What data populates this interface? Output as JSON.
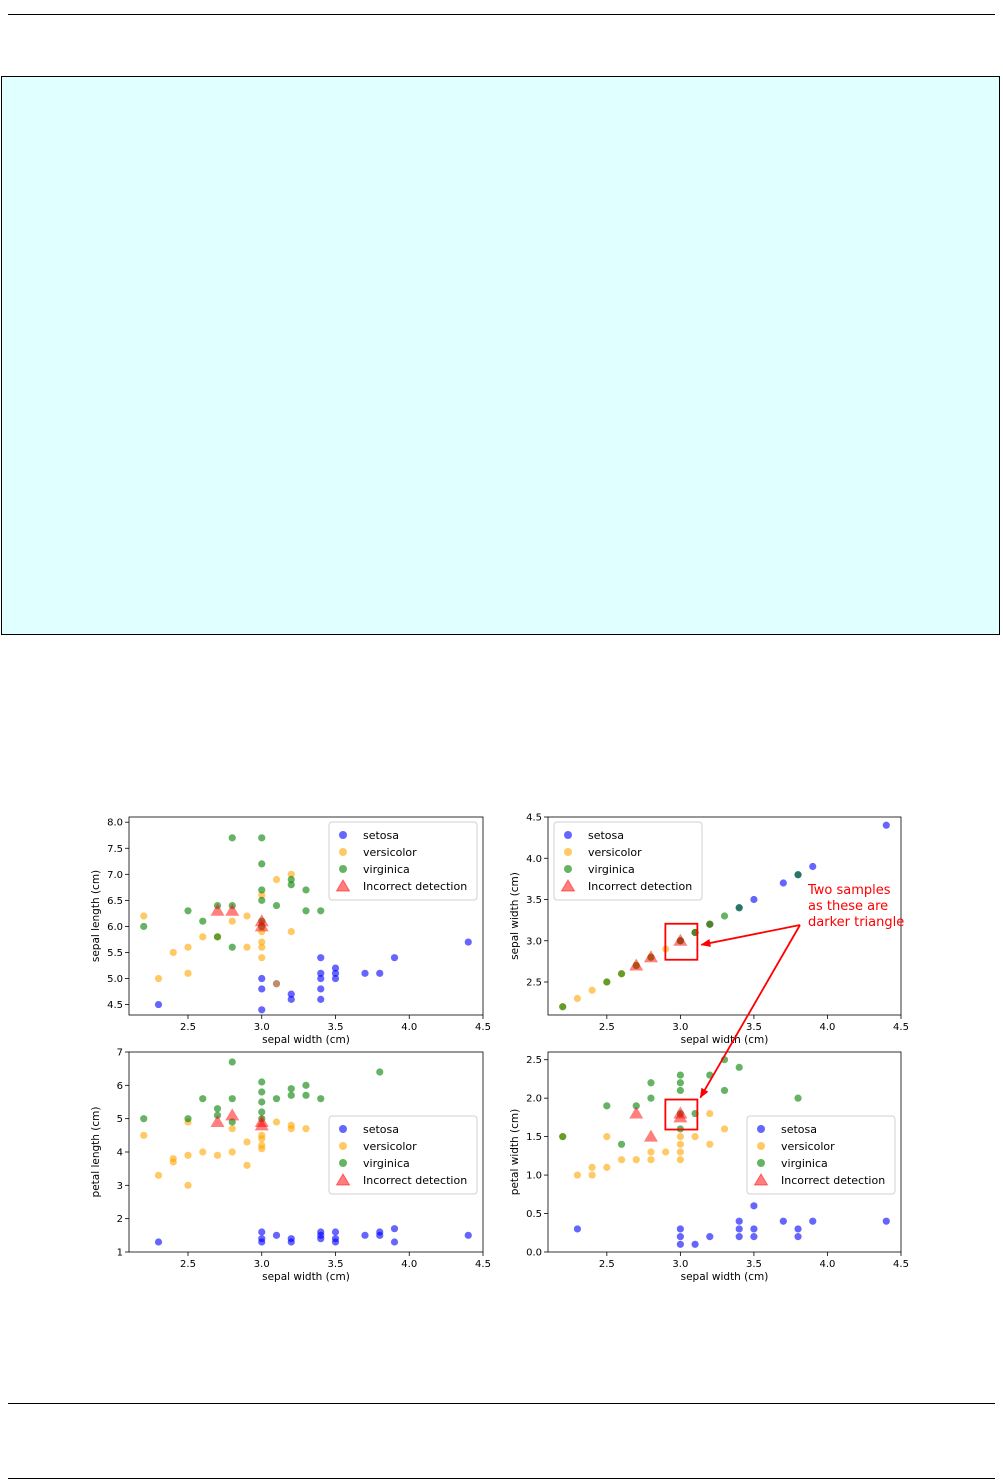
{
  "chart_data": [
    {
      "type": "scatter",
      "xlabel": "sepal width (cm)",
      "ylabel": "sepal length (cm)",
      "xlim": [
        2.1,
        4.5
      ],
      "ylim": [
        4.3,
        8.1
      ],
      "xticks": [
        2.5,
        3.0,
        3.5,
        4.0,
        4.5
      ],
      "yticks": [
        4.5,
        5.0,
        5.5,
        6.0,
        6.5,
        7.0,
        7.5,
        8.0
      ],
      "legend_position": "top-right",
      "series": [
        {
          "name": "setosa",
          "color": "#0000ff",
          "points": [
            [
              2.3,
              4.5
            ],
            [
              3.0,
              4.4
            ],
            [
              3.0,
              4.8
            ],
            [
              3.0,
              5.0
            ],
            [
              3.1,
              4.9
            ],
            [
              3.2,
              4.6
            ],
            [
              3.2,
              4.7
            ],
            [
              3.4,
              4.6
            ],
            [
              3.4,
              4.8
            ],
            [
              3.4,
              5.0
            ],
            [
              3.4,
              5.1
            ],
            [
              3.4,
              5.4
            ],
            [
              3.5,
              5.0
            ],
            [
              3.5,
              5.1
            ],
            [
              3.5,
              5.2
            ],
            [
              3.7,
              5.1
            ],
            [
              3.8,
              5.1
            ],
            [
              3.9,
              5.4
            ],
            [
              4.4,
              5.7
            ]
          ]
        },
        {
          "name": "versicolor",
          "color": "#ffa500",
          "points": [
            [
              2.2,
              6.2
            ],
            [
              2.3,
              5.0
            ],
            [
              2.4,
              5.5
            ],
            [
              2.5,
              5.1
            ],
            [
              2.5,
              5.6
            ],
            [
              2.6,
              5.8
            ],
            [
              2.7,
              5.8
            ],
            [
              2.8,
              6.1
            ],
            [
              2.9,
              5.6
            ],
            [
              2.9,
              6.2
            ],
            [
              3.0,
              5.4
            ],
            [
              3.0,
              5.6
            ],
            [
              3.0,
              5.7
            ],
            [
              3.0,
              5.9
            ],
            [
              3.0,
              6.6
            ],
            [
              3.1,
              4.9
            ],
            [
              3.1,
              6.9
            ],
            [
              3.2,
              5.9
            ],
            [
              3.2,
              7.0
            ]
          ]
        },
        {
          "name": "virginica",
          "color": "#008000",
          "points": [
            [
              2.2,
              6.0
            ],
            [
              2.5,
              6.3
            ],
            [
              2.6,
              6.1
            ],
            [
              2.7,
              5.8
            ],
            [
              2.7,
              6.4
            ],
            [
              2.8,
              5.6
            ],
            [
              2.8,
              6.4
            ],
            [
              2.8,
              7.7
            ],
            [
              3.0,
              6.0
            ],
            [
              3.0,
              6.1
            ],
            [
              3.0,
              6.5
            ],
            [
              3.0,
              6.7
            ],
            [
              3.0,
              7.2
            ],
            [
              3.0,
              7.7
            ],
            [
              3.1,
              6.4
            ],
            [
              3.2,
              6.8
            ],
            [
              3.2,
              6.9
            ],
            [
              3.3,
              6.3
            ],
            [
              3.3,
              6.7
            ],
            [
              3.4,
              6.3
            ]
          ]
        },
        {
          "name": "Incorrect detection",
          "color": "#ff0000",
          "marker": "triangle",
          "points": [
            [
              2.7,
              6.3
            ],
            [
              2.8,
              6.3
            ],
            [
              3.0,
              6.1
            ],
            [
              3.0,
              6.0
            ]
          ]
        }
      ]
    },
    {
      "type": "scatter",
      "xlabel": "sepal width (cm)",
      "ylabel": "sepal width (cm)",
      "xlim": [
        2.1,
        4.5
      ],
      "ylim": [
        2.1,
        4.5
      ],
      "xticks": [
        2.5,
        3.0,
        3.5,
        4.0,
        4.5
      ],
      "yticks": [
        2.5,
        3.0,
        3.5,
        4.0,
        4.5
      ],
      "legend_position": "top-left",
      "series": [
        {
          "name": "setosa",
          "color": "#0000ff",
          "points": [
            [
              3.0,
              3.0
            ],
            [
              3.1,
              3.1
            ],
            [
              3.2,
              3.2
            ],
            [
              3.4,
              3.4
            ],
            [
              3.5,
              3.5
            ],
            [
              3.7,
              3.7
            ],
            [
              3.8,
              3.8
            ],
            [
              3.9,
              3.9
            ],
            [
              4.4,
              4.4
            ]
          ]
        },
        {
          "name": "versicolor",
          "color": "#ffa500",
          "points": [
            [
              2.2,
              2.2
            ],
            [
              2.3,
              2.3
            ],
            [
              2.4,
              2.4
            ],
            [
              2.5,
              2.5
            ],
            [
              2.6,
              2.6
            ],
            [
              2.7,
              2.7
            ],
            [
              2.8,
              2.8
            ],
            [
              2.9,
              2.9
            ],
            [
              3.0,
              3.0
            ],
            [
              3.1,
              3.1
            ],
            [
              3.2,
              3.2
            ]
          ]
        },
        {
          "name": "virginica",
          "color": "#008000",
          "points": [
            [
              2.2,
              2.2
            ],
            [
              2.5,
              2.5
            ],
            [
              2.6,
              2.6
            ],
            [
              2.7,
              2.7
            ],
            [
              2.8,
              2.8
            ],
            [
              3.0,
              3.0
            ],
            [
              3.1,
              3.1
            ],
            [
              3.2,
              3.2
            ],
            [
              3.3,
              3.3
            ],
            [
              3.4,
              3.4
            ],
            [
              3.8,
              3.8
            ]
          ]
        },
        {
          "name": "Incorrect detection",
          "color": "#ff0000",
          "marker": "triangle",
          "points": [
            [
              2.7,
              2.7
            ],
            [
              2.8,
              2.8
            ],
            [
              3.0,
              3.0
            ]
          ]
        }
      ],
      "annotation": {
        "lines": [
          "Two samples",
          "as these are",
          "darker triangle"
        ],
        "color": "#ff0000"
      }
    },
    {
      "type": "scatter",
      "xlabel": "sepal width (cm)",
      "ylabel": "petal length (cm)",
      "xlim": [
        2.1,
        4.5
      ],
      "ylim": [
        1.0,
        7.0
      ],
      "xticks": [
        2.5,
        3.0,
        3.5,
        4.0,
        4.5
      ],
      "yticks": [
        1,
        2,
        3,
        4,
        5,
        6,
        7
      ],
      "legend_position": "center-right",
      "series": [
        {
          "name": "setosa",
          "color": "#0000ff",
          "points": [
            [
              2.3,
              1.3
            ],
            [
              3.0,
              1.3
            ],
            [
              3.0,
              1.4
            ],
            [
              3.0,
              1.6
            ],
            [
              3.1,
              1.5
            ],
            [
              3.2,
              1.3
            ],
            [
              3.2,
              1.4
            ],
            [
              3.4,
              1.4
            ],
            [
              3.4,
              1.5
            ],
            [
              3.4,
              1.6
            ],
            [
              3.5,
              1.3
            ],
            [
              3.5,
              1.4
            ],
            [
              3.5,
              1.6
            ],
            [
              3.7,
              1.5
            ],
            [
              3.8,
              1.5
            ],
            [
              3.8,
              1.6
            ],
            [
              3.9,
              1.3
            ],
            [
              3.9,
              1.7
            ],
            [
              4.4,
              1.5
            ]
          ]
        },
        {
          "name": "versicolor",
          "color": "#ffa500",
          "points": [
            [
              2.2,
              4.5
            ],
            [
              2.3,
              3.3
            ],
            [
              2.4,
              3.7
            ],
            [
              2.4,
              3.8
            ],
            [
              2.5,
              3.0
            ],
            [
              2.5,
              3.9
            ],
            [
              2.5,
              4.9
            ],
            [
              2.6,
              4.0
            ],
            [
              2.7,
              3.9
            ],
            [
              2.8,
              4.0
            ],
            [
              2.8,
              4.7
            ],
            [
              2.9,
              3.6
            ],
            [
              2.9,
              4.3
            ],
            [
              3.0,
              4.1
            ],
            [
              3.0,
              4.2
            ],
            [
              3.0,
              4.4
            ],
            [
              3.0,
              4.5
            ],
            [
              3.1,
              4.9
            ],
            [
              3.2,
              4.7
            ],
            [
              3.2,
              4.8
            ],
            [
              3.3,
              4.7
            ]
          ]
        },
        {
          "name": "virginica",
          "color": "#008000",
          "points": [
            [
              2.2,
              5.0
            ],
            [
              2.5,
              5.0
            ],
            [
              2.6,
              5.6
            ],
            [
              2.7,
              5.1
            ],
            [
              2.7,
              5.3
            ],
            [
              2.8,
              4.9
            ],
            [
              2.8,
              5.6
            ],
            [
              2.8,
              6.7
            ],
            [
              3.0,
              5.0
            ],
            [
              3.0,
              5.2
            ],
            [
              3.0,
              5.5
            ],
            [
              3.0,
              5.8
            ],
            [
              3.0,
              6.1
            ],
            [
              3.1,
              5.6
            ],
            [
              3.2,
              5.7
            ],
            [
              3.2,
              5.9
            ],
            [
              3.3,
              5.7
            ],
            [
              3.3,
              6.0
            ],
            [
              3.4,
              5.6
            ],
            [
              3.8,
              6.4
            ]
          ]
        },
        {
          "name": "Incorrect detection",
          "color": "#ff0000",
          "marker": "triangle",
          "points": [
            [
              2.7,
              4.9
            ],
            [
              2.8,
              5.1
            ],
            [
              3.0,
              4.8
            ],
            [
              3.0,
              4.9
            ]
          ]
        }
      ]
    },
    {
      "type": "scatter",
      "xlabel": "sepal width (cm)",
      "ylabel": "petal width (cm)",
      "xlim": [
        2.1,
        4.5
      ],
      "ylim": [
        0.0,
        2.6
      ],
      "xticks": [
        2.5,
        3.0,
        3.5,
        4.0,
        4.5
      ],
      "yticks": [
        0.0,
        0.5,
        1.0,
        1.5,
        2.0,
        2.5
      ],
      "legend_position": "center-right",
      "series": [
        {
          "name": "setosa",
          "color": "#0000ff",
          "points": [
            [
              2.3,
              0.3
            ],
            [
              3.0,
              0.1
            ],
            [
              3.0,
              0.2
            ],
            [
              3.0,
              0.3
            ],
            [
              3.1,
              0.1
            ],
            [
              3.2,
              0.2
            ],
            [
              3.4,
              0.2
            ],
            [
              3.4,
              0.3
            ],
            [
              3.4,
              0.4
            ],
            [
              3.5,
              0.2
            ],
            [
              3.5,
              0.3
            ],
            [
              3.5,
              0.6
            ],
            [
              3.7,
              0.4
            ],
            [
              3.8,
              0.2
            ],
            [
              3.8,
              0.3
            ],
            [
              3.9,
              0.4
            ],
            [
              4.4,
              0.4
            ]
          ]
        },
        {
          "name": "versicolor",
          "color": "#ffa500",
          "points": [
            [
              2.2,
              1.5
            ],
            [
              2.3,
              1.0
            ],
            [
              2.4,
              1.0
            ],
            [
              2.4,
              1.1
            ],
            [
              2.5,
              1.1
            ],
            [
              2.5,
              1.5
            ],
            [
              2.6,
              1.2
            ],
            [
              2.7,
              1.2
            ],
            [
              2.8,
              1.2
            ],
            [
              2.8,
              1.3
            ],
            [
              2.9,
              1.3
            ],
            [
              3.0,
              1.2
            ],
            [
              3.0,
              1.3
            ],
            [
              3.0,
              1.4
            ],
            [
              3.0,
              1.5
            ],
            [
              3.1,
              1.5
            ],
            [
              3.2,
              1.4
            ],
            [
              3.2,
              1.8
            ],
            [
              3.3,
              1.6
            ]
          ]
        },
        {
          "name": "virginica",
          "color": "#008000",
          "points": [
            [
              2.2,
              1.5
            ],
            [
              2.5,
              1.9
            ],
            [
              2.6,
              1.4
            ],
            [
              2.7,
              1.9
            ],
            [
              2.8,
              2.0
            ],
            [
              2.8,
              2.2
            ],
            [
              3.0,
              1.6
            ],
            [
              3.0,
              1.8
            ],
            [
              3.0,
              2.1
            ],
            [
              3.0,
              2.2
            ],
            [
              3.0,
              2.3
            ],
            [
              3.1,
              1.8
            ],
            [
              3.2,
              2.3
            ],
            [
              3.3,
              2.1
            ],
            [
              3.3,
              2.5
            ],
            [
              3.4,
              2.4
            ],
            [
              3.8,
              2.0
            ]
          ]
        },
        {
          "name": "Incorrect detection",
          "color": "#ff0000",
          "marker": "triangle",
          "points": [
            [
              2.7,
              1.8
            ],
            [
              2.8,
              1.5
            ],
            [
              3.0,
              1.8
            ],
            [
              3.0,
              1.75
            ]
          ]
        }
      ]
    }
  ]
}
